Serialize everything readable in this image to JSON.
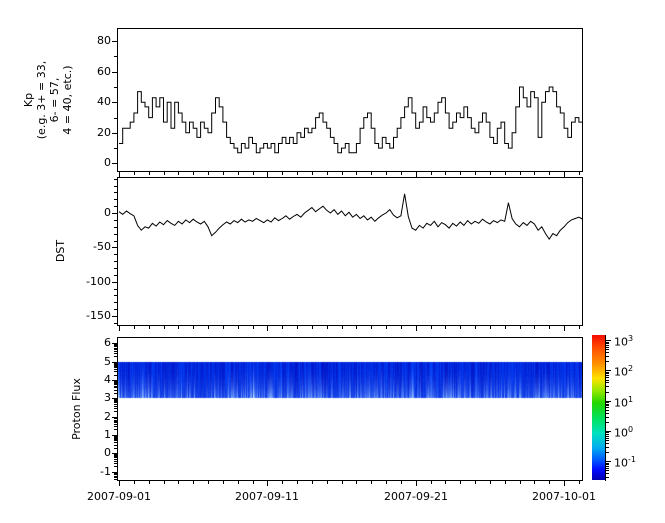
{
  "x_axis": {
    "tick_labels": [
      "2007-09-01",
      "2007-09-11",
      "2007-09-21",
      "2007-10-01"
    ],
    "tick_days": [
      0,
      10,
      20,
      30
    ],
    "minor_tick_every_days": 1,
    "total_days_shown": 31.28,
    "left_margin_days": 0.07
  },
  "panels": {
    "kp": {
      "ylabel": "Kp\n(e.g. 3+ = 33,\n6- = 57,\n4 = 40, etc.)",
      "yticks": [
        80,
        60,
        40,
        20,
        0
      ],
      "yminor": [
        70,
        50,
        30,
        10
      ],
      "ylim": [
        -5,
        88
      ]
    },
    "dst": {
      "ylabel": "DST",
      "yticks": [
        0,
        -50,
        -100,
        -150
      ],
      "yminor_step": 10,
      "ylim": [
        -163,
        51
      ]
    },
    "flux": {
      "ylabel": "Proton Flux",
      "yticks": [
        6,
        5,
        4,
        3,
        2,
        1,
        0,
        -1
      ],
      "ylim": [
        -1.46,
        6.3
      ],
      "band": [
        3,
        5
      ]
    }
  },
  "colorbar": {
    "colormap": "jet",
    "scale": "log",
    "tick_exponents": [
      3,
      2,
      1,
      0,
      -1
    ],
    "vlim_exponents": [
      -1.62,
      3.17
    ],
    "stops": [
      [
        "#f50b00",
        0
      ],
      [
        "#ff5500",
        0.1
      ],
      [
        "#ff9100",
        0.2
      ],
      [
        "#ffe100",
        0.3
      ],
      [
        "#9aE800",
        0.38
      ],
      [
        "#22d600",
        0.47
      ],
      [
        "#00e262",
        0.58
      ],
      [
        "#00e0c0",
        0.68
      ],
      [
        "#00aaf0",
        0.78
      ],
      [
        "#0050ff",
        0.87
      ],
      [
        "#0008ff",
        0.93
      ],
      [
        "#0000b0",
        1
      ]
    ]
  },
  "flux_band_style": {
    "base_top_color": "#0020d8",
    "streak_bottom_color": "#4f7dff",
    "streak_seed": 20070901
  },
  "chart_data": [
    {
      "type": "line",
      "name": "Kp index",
      "ylabel": "Kp (e.g. 3+ = 33, 6- = 57, 4 = 40, etc.)",
      "draw_style": "steps-post",
      "x_start": "2007-09-01",
      "x_end": "2007-10-01",
      "step_hours": 6,
      "ylim": [
        -5,
        88
      ],
      "yticks": [
        0,
        20,
        40,
        60,
        80
      ],
      "values": [
        13,
        23,
        23,
        27,
        33,
        47,
        40,
        37,
        30,
        43,
        37,
        43,
        27,
        40,
        23,
        40,
        33,
        27,
        20,
        27,
        23,
        17,
        27,
        23,
        20,
        33,
        43,
        37,
        27,
        17,
        13,
        10,
        7,
        13,
        10,
        17,
        13,
        7,
        10,
        13,
        10,
        13,
        7,
        13,
        17,
        13,
        17,
        13,
        20,
        17,
        23,
        20,
        23,
        30,
        33,
        27,
        23,
        17,
        13,
        7,
        10,
        13,
        7,
        7,
        13,
        23,
        30,
        33,
        23,
        13,
        10,
        17,
        13,
        10,
        17,
        23,
        30,
        37,
        43,
        33,
        23,
        27,
        37,
        30,
        27,
        33,
        40,
        43,
        33,
        23,
        27,
        33,
        30,
        37,
        30,
        23,
        20,
        27,
        33,
        27,
        17,
        13,
        23,
        27,
        13,
        10,
        20,
        37,
        50,
        43,
        37,
        47,
        43,
        17,
        40,
        47,
        50,
        47,
        37,
        33,
        23,
        17,
        27,
        30,
        27,
        23
      ]
    },
    {
      "type": "line",
      "name": "DST index",
      "ylabel": "DST",
      "draw_style": "line",
      "x_start": "2007-09-01",
      "x_end": "2007-10-01",
      "step_hours": 6,
      "ylim": [
        -163,
        51
      ],
      "yticks": [
        -150,
        -100,
        -50,
        0
      ],
      "values": [
        2,
        -2,
        3,
        -1,
        -4,
        -18,
        -25,
        -20,
        -22,
        -15,
        -19,
        -13,
        -17,
        -11,
        -15,
        -18,
        -12,
        -16,
        -10,
        -14,
        -9,
        -13,
        -16,
        -12,
        -20,
        -33,
        -28,
        -22,
        -17,
        -13,
        -16,
        -11,
        -14,
        -9,
        -13,
        -10,
        -12,
        -8,
        -11,
        -14,
        -10,
        -13,
        -7,
        -11,
        -8,
        -4,
        -9,
        -5,
        -2,
        -6,
        0,
        4,
        8,
        2,
        6,
        10,
        4,
        0,
        5,
        -2,
        3,
        -4,
        1,
        -6,
        -2,
        -8,
        -4,
        -10,
        -6,
        -12,
        -7,
        -3,
        0,
        5,
        -3,
        -7,
        -4,
        28,
        -5,
        -22,
        -25,
        -18,
        -22,
        -15,
        -18,
        -12,
        -20,
        -14,
        -17,
        -22,
        -15,
        -19,
        -13,
        -18,
        -11,
        -16,
        -12,
        -15,
        -9,
        -13,
        -16,
        -11,
        -14,
        -10,
        -12,
        15,
        -8,
        -16,
        -20,
        -14,
        -18,
        -12,
        -16,
        -25,
        -20,
        -30,
        -38,
        -30,
        -33,
        -25,
        -20,
        -14,
        -10,
        -8,
        -6,
        -9
      ]
    },
    {
      "type": "heatmap",
      "name": "Proton Flux spectrogram",
      "ylabel": "Proton Flux",
      "x_start": "2007-09-01",
      "x_end": "2007-10-01",
      "ylim": [
        -1.46,
        6.3
      ],
      "yticks": [
        -1,
        0,
        1,
        2,
        3,
        4,
        5,
        6
      ],
      "band_y_range": [
        3,
        5
      ],
      "colorbar_scale": "log",
      "colorbar_tick_values": [
        "1e3",
        "1e2",
        "1e1",
        "1e0",
        "1e-1"
      ],
      "value_description": "continuous low-flux band between y=3 and y=5; deep blue (~0.05-0.3) with brighter blue vertical streaks (~0.5-2) concentrated near the bottom of the band"
    }
  ]
}
